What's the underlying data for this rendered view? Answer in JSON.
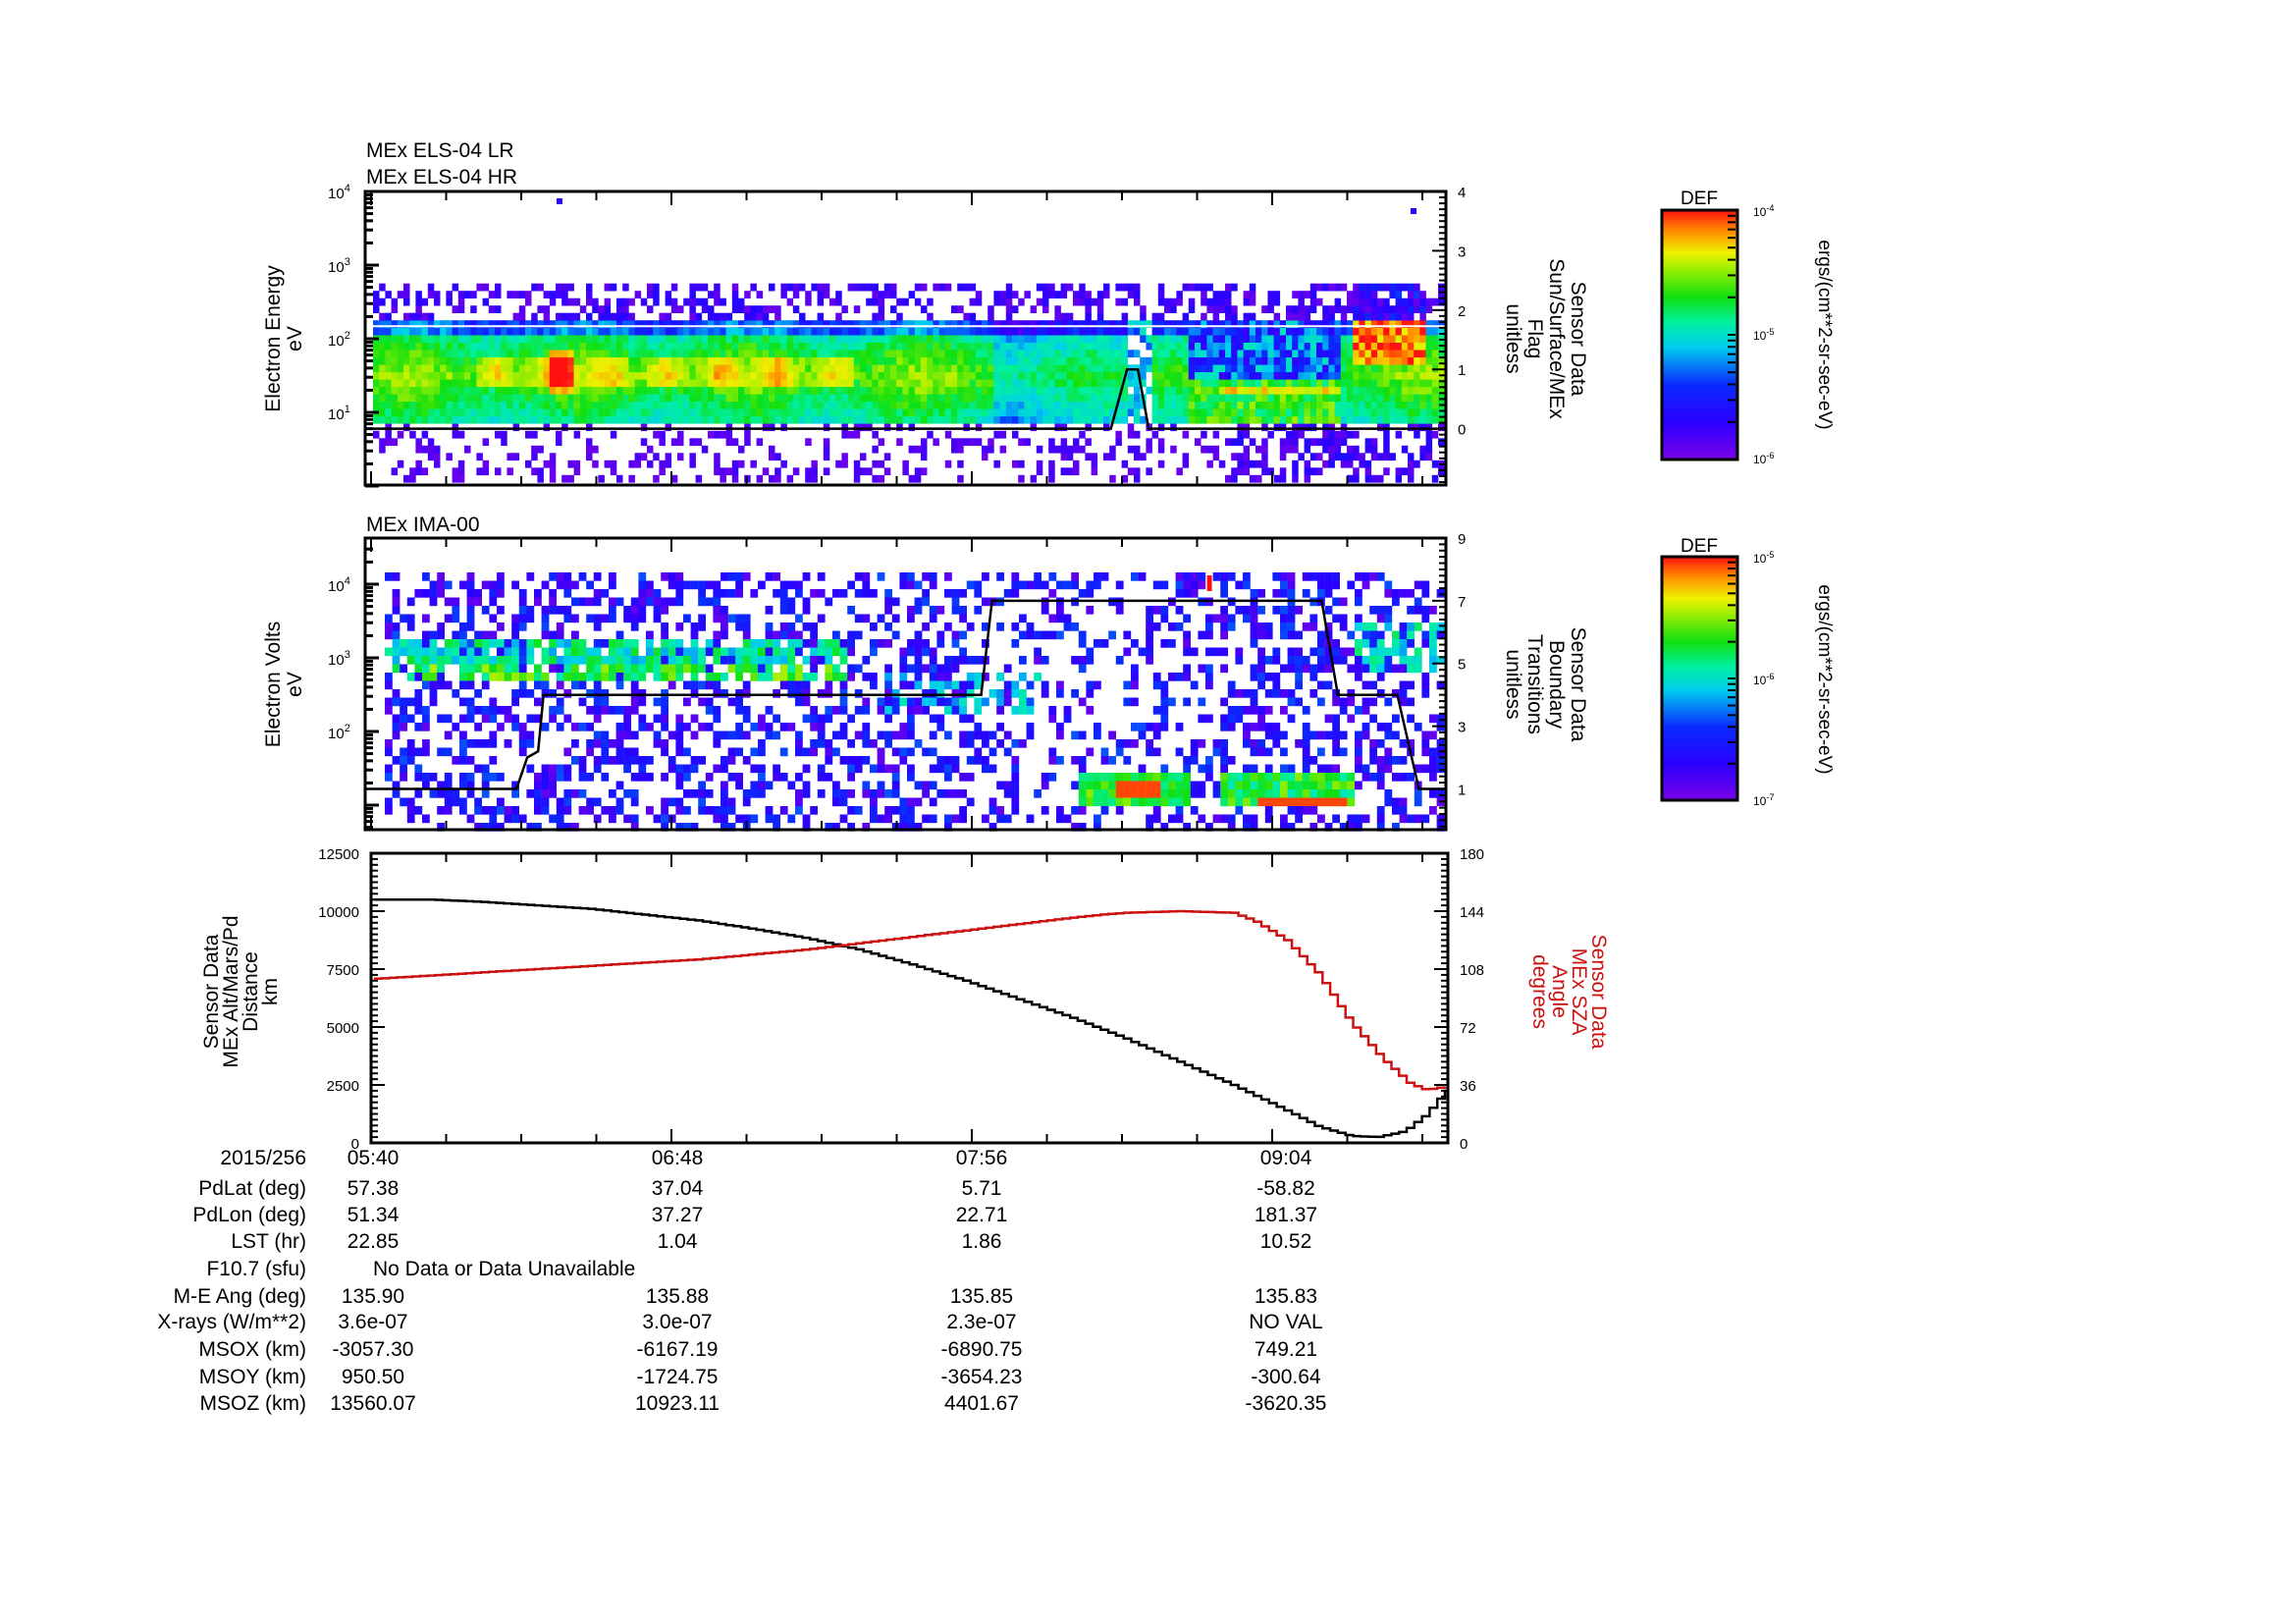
{
  "chart_data": [
    {
      "type": "heatmap",
      "panel": "top",
      "titles": [
        "MEx ELS-04 LR",
        "MEx ELS-04 HR"
      ],
      "ylabel": [
        "Electron Energy",
        "eV"
      ],
      "yscale": "log",
      "ylim": [
        1,
        10000
      ],
      "yticks": [
        {
          "exp": "4",
          "value": 10000
        },
        {
          "exp": "3",
          "value": 1000
        },
        {
          "exp": "2",
          "value": 100
        },
        {
          "exp": "1",
          "value": 10
        }
      ],
      "right_axis": {
        "label": [
          "Sensor Data",
          "Sun/Surface/MEx",
          "Flag",
          "unitless"
        ],
        "ylim": [
          -0.95,
          4
        ],
        "ticks": [
          0,
          1,
          2,
          3,
          4
        ],
        "flag_line": [
          [
            0,
            0
          ],
          [
            0.69,
            0
          ],
          [
            0.705,
            1
          ],
          [
            0.715,
            1
          ],
          [
            0.725,
            0
          ],
          [
            1,
            0
          ]
        ]
      },
      "colorbar": {
        "title": "DEF",
        "ticks": [
          {
            "base": "10",
            "exp": "-4"
          },
          {
            "base": "10",
            "exp": "-5"
          },
          {
            "base": "10",
            "exp": "-6"
          }
        ],
        "units": "ergs/(cm**2-sr-sec-eV)",
        "range": [
          1e-06,
          0.0001
        ]
      },
      "description": "Electron energy spectrogram; broad band 6-150 eV, intense (red) bursts near 20-40 eV around 05:55-06:30, enhancement (red) 50-150 eV near 09:15-09:25"
    },
    {
      "type": "heatmap",
      "panel": "middle",
      "titles": [
        "MEx IMA-00"
      ],
      "ylabel": [
        "Electron Volts",
        "eV"
      ],
      "yscale": "log",
      "ylim": [
        4,
        40000
      ],
      "yticks": [
        {
          "exp": "4",
          "value": 10000
        },
        {
          "exp": "3",
          "value": 1000
        },
        {
          "exp": "2",
          "value": 100
        }
      ],
      "right_axis": {
        "label": [
          "Sensor Data",
          "Boundary",
          "Transitions",
          "unitless"
        ],
        "ylim": [
          -0.3,
          9
        ],
        "ticks": [
          1,
          3,
          5,
          7,
          9
        ],
        "boundary_line": [
          [
            0,
            1
          ],
          [
            0.14,
            1
          ],
          [
            0.15,
            2
          ],
          [
            0.16,
            2.2
          ],
          [
            0.165,
            4
          ],
          [
            0.57,
            4
          ],
          [
            0.58,
            7
          ],
          [
            0.885,
            7
          ],
          [
            0.9,
            4
          ],
          [
            0.955,
            4
          ],
          [
            0.975,
            1
          ],
          [
            1,
            1
          ]
        ]
      },
      "colorbar": {
        "title": "DEF",
        "ticks": [
          {
            "base": "10",
            "exp": "-5"
          },
          {
            "base": "10",
            "exp": "-6"
          },
          {
            "base": "10",
            "exp": "-7"
          }
        ],
        "units": "ergs/(cm**2-sr-sec-eV)",
        "range": [
          1e-07,
          1e-05
        ]
      },
      "description": "Ion spectrogram; band near 1 keV until ~07:20, low-energy intense (red) ions near 10-20 eV at 08:25-08:45 and 09:00-09:15, data gap near 08:47"
    },
    {
      "type": "line",
      "panel": "bottom",
      "x": [
        "05:40",
        "06:48",
        "07:56",
        "09:04"
      ],
      "xlabel_date": "2015/256",
      "ylabel": [
        "Sensor Data",
        "MEx Alt/Mars/Pd",
        "Distance",
        "km"
      ],
      "ylim": [
        0,
        12500
      ],
      "yticks": [
        0,
        2500,
        5000,
        7500,
        10000,
        12500
      ],
      "right_axis": {
        "label": [
          "Sensor Data",
          "MEx SZA",
          "Angle",
          "degrees"
        ],
        "ylim": [
          0,
          180
        ],
        "ticks": [
          0,
          36,
          72,
          108,
          144,
          180
        ],
        "color": "#cc1111"
      },
      "series": [
        {
          "name": "MEx Alt/Mars/Pd Distance (km)",
          "color": "#000000",
          "axis": "left",
          "points": [
            [
              0.0,
              10500
            ],
            [
              0.05,
              10500
            ],
            [
              0.1,
              10400
            ],
            [
              0.15,
              10250
            ],
            [
              0.2,
              10100
            ],
            [
              0.25,
              9850
            ],
            [
              0.3,
              9600
            ],
            [
              0.35,
              9250
            ],
            [
              0.4,
              8850
            ],
            [
              0.45,
              8350
            ],
            [
              0.5,
              7700
            ],
            [
              0.55,
              7000
            ],
            [
              0.6,
              6200
            ],
            [
              0.65,
              5400
            ],
            [
              0.7,
              4500
            ],
            [
              0.75,
              3500
            ],
            [
              0.8,
              2500
            ],
            [
              0.85,
              1400
            ],
            [
              0.88,
              700
            ],
            [
              0.91,
              300
            ],
            [
              0.935,
              250
            ],
            [
              0.96,
              500
            ],
            [
              0.98,
              1200
            ],
            [
              1.0,
              2300
            ]
          ]
        },
        {
          "name": "MEx SZA Angle (degrees)",
          "color": "#cc1111",
          "axis": "right",
          "points": [
            [
              0.0,
              102
            ],
            [
              0.05,
              104
            ],
            [
              0.1,
              106
            ],
            [
              0.15,
              108
            ],
            [
              0.2,
              110
            ],
            [
              0.25,
              112
            ],
            [
              0.3,
              114
            ],
            [
              0.35,
              117
            ],
            [
              0.4,
              120
            ],
            [
              0.45,
              124
            ],
            [
              0.5,
              128
            ],
            [
              0.55,
              132
            ],
            [
              0.6,
              136
            ],
            [
              0.65,
              140
            ],
            [
              0.68,
              142
            ],
            [
              0.7,
              143
            ],
            [
              0.75,
              144
            ],
            [
              0.8,
              143
            ],
            [
              0.82,
              138
            ],
            [
              0.85,
              126
            ],
            [
              0.88,
              105
            ],
            [
              0.91,
              75
            ],
            [
              0.94,
              52
            ],
            [
              0.965,
              37
            ],
            [
              0.98,
              33
            ],
            [
              1.0,
              35
            ]
          ]
        }
      ]
    }
  ],
  "ephemeris": {
    "row_labels": [
      "2015/256",
      "PdLat (deg)",
      "PdLon (deg)",
      "LST (hr)",
      "F10.7 (sfu)",
      "M-E Ang (deg)",
      "X-rays (W/m**2)",
      "MSOX (km)",
      "MSOY (km)",
      "MSOZ (km)"
    ],
    "columns": [
      {
        "time": "05:40",
        "pdlat": "57.38",
        "pdlon": "51.34",
        "lst": "22.85",
        "me_ang": "135.90",
        "xrays": "3.6e-07",
        "msox": "-3057.30",
        "msoy": "950.50",
        "msoz": "13560.07"
      },
      {
        "time": "06:48",
        "pdlat": "37.04",
        "pdlon": "37.27",
        "lst": "1.04",
        "me_ang": "135.88",
        "xrays": "3.0e-07",
        "msox": "-6167.19",
        "msoy": "-1724.75",
        "msoz": "10923.11"
      },
      {
        "time": "07:56",
        "pdlat": "5.71",
        "pdlon": "22.71",
        "lst": "1.86",
        "me_ang": "135.85",
        "xrays": "2.3e-07",
        "msox": "-6890.75",
        "msoy": "-3654.23",
        "msoz": "4401.67"
      },
      {
        "time": "09:04",
        "pdlat": "-58.82",
        "pdlon": "181.37",
        "lst": "10.52",
        "me_ang": "135.83",
        "xrays": "NO VAL",
        "msox": "749.21",
        "msoy": "-300.64",
        "msoz": "-3620.35"
      }
    ],
    "f107_text": "No Data or Data Unavailable"
  },
  "colors": {
    "sza": "#cc1111",
    "distance": "#000000"
  }
}
